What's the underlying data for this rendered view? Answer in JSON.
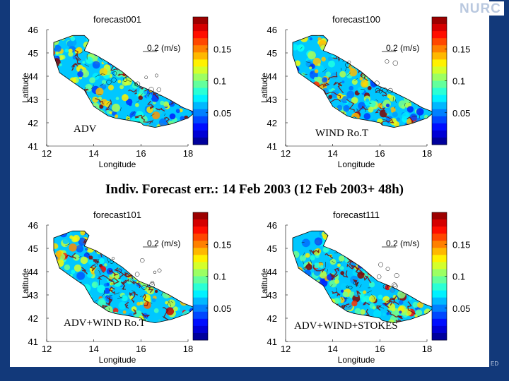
{
  "logo_text": "NURC",
  "footer_text": "ED",
  "headline": "Indiv. Forecast err.: 14 Feb 2003 (12 Feb 2003+ 48h)",
  "colors": {
    "background": "#12397a",
    "slide": "#ffffff",
    "coast": "#000000",
    "track": "#7a0c0c"
  },
  "chart_data": [
    {
      "type": "heatmap",
      "title": "forecast001",
      "xlabel": "Longitude",
      "ylabel": "Latitude",
      "xlim": [
        12,
        18
      ],
      "ylim": [
        41,
        46
      ],
      "xticks": [
        "12",
        "14",
        "16",
        "18"
      ],
      "yticks": [
        "41",
        "42",
        "43",
        "44",
        "45",
        "46"
      ],
      "colorbar": {
        "min": 0,
        "max": 0.2,
        "ticks": [
          "0.05",
          "0.1",
          "0.15"
        ],
        "tick_values": [
          0.05,
          0.1,
          0.15
        ]
      },
      "reference_arrow_label": "0.2 (m/s)",
      "annotation": "ADV",
      "intensity": 0.35
    },
    {
      "type": "heatmap",
      "title": "forecast100",
      "xlabel": "Longitude",
      "ylabel": "Latitude",
      "xlim": [
        12,
        18
      ],
      "ylim": [
        41,
        46
      ],
      "xticks": [
        "12",
        "14",
        "16",
        "18"
      ],
      "yticks": [
        "41",
        "42",
        "43",
        "44",
        "45",
        "46"
      ],
      "colorbar": {
        "min": 0,
        "max": 0.2,
        "ticks": [
          "0.05",
          "0.1",
          "0.15"
        ],
        "tick_values": [
          0.05,
          0.1,
          0.15
        ]
      },
      "reference_arrow_label": "0.2 (m/s)",
      "annotation": "WIND Ro.T",
      "intensity": 0.3
    },
    {
      "type": "heatmap",
      "title": "forecast101",
      "xlabel": "Longitude",
      "ylabel": "Latitude",
      "xlim": [
        12,
        18
      ],
      "ylim": [
        41,
        46
      ],
      "xticks": [
        "12",
        "14",
        "16",
        "18"
      ],
      "yticks": [
        "41",
        "42",
        "43",
        "44",
        "45",
        "46"
      ],
      "colorbar": {
        "min": 0,
        "max": 0.2,
        "ticks": [
          "0.05",
          "0.1",
          "0.15"
        ],
        "tick_values": [
          0.05,
          0.1,
          0.15
        ]
      },
      "reference_arrow_label": "0.2 (m/s)",
      "annotation": "ADV+WIND Ro.T",
      "intensity": 0.55
    },
    {
      "type": "heatmap",
      "title": "forecast111",
      "xlabel": "Longitude",
      "ylabel": "Latitude",
      "xlim": [
        12,
        18
      ],
      "ylim": [
        41,
        46
      ],
      "xticks": [
        "12",
        "14",
        "16",
        "18"
      ],
      "yticks": [
        "41",
        "42",
        "43",
        "44",
        "45",
        "46"
      ],
      "colorbar": {
        "min": 0,
        "max": 0.2,
        "ticks": [
          "0.05",
          "0.1",
          "0.15"
        ],
        "tick_values": [
          0.05,
          0.1,
          0.15
        ]
      },
      "reference_arrow_label": "0.2 (m/s)",
      "annotation": "ADV+WIND+STOKES",
      "intensity": 0.6
    }
  ]
}
